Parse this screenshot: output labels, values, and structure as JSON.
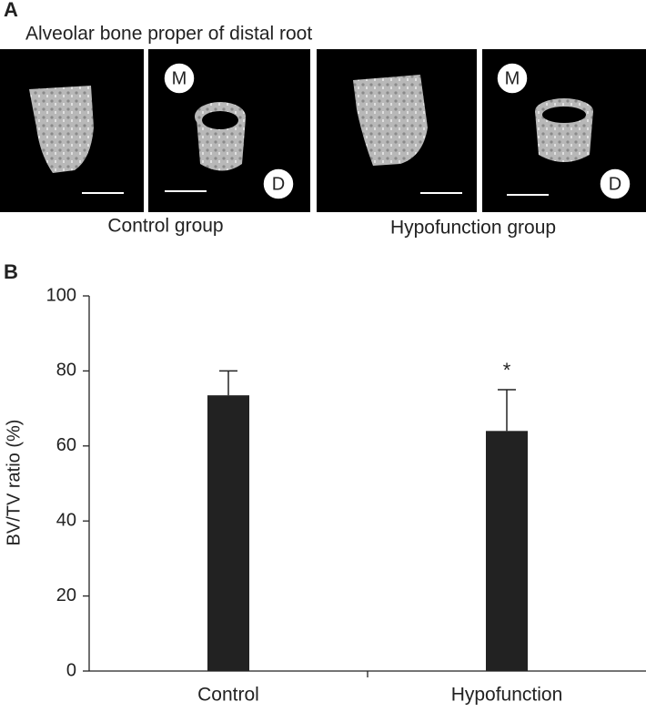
{
  "panel_labels": [
    "A",
    "B"
  ],
  "panel_a": {
    "title": "Alveolar bone proper of distal root",
    "groups": [
      "Control group",
      "Hypofunction group"
    ],
    "markers": [
      "M",
      "D"
    ]
  },
  "chart_data": {
    "type": "bar",
    "categories": [
      "Control",
      "Hypofunction"
    ],
    "values": [
      73.5,
      64
    ],
    "errors": [
      6.5,
      11
    ],
    "color": "#222222",
    "ylabel": "BV/TV ratio (%)",
    "ylim": [
      0,
      100
    ],
    "yticks": [
      0,
      20,
      40,
      60,
      80,
      100
    ],
    "annotations": [
      {
        "text": "*",
        "category": "Hypofunction"
      }
    ]
  }
}
